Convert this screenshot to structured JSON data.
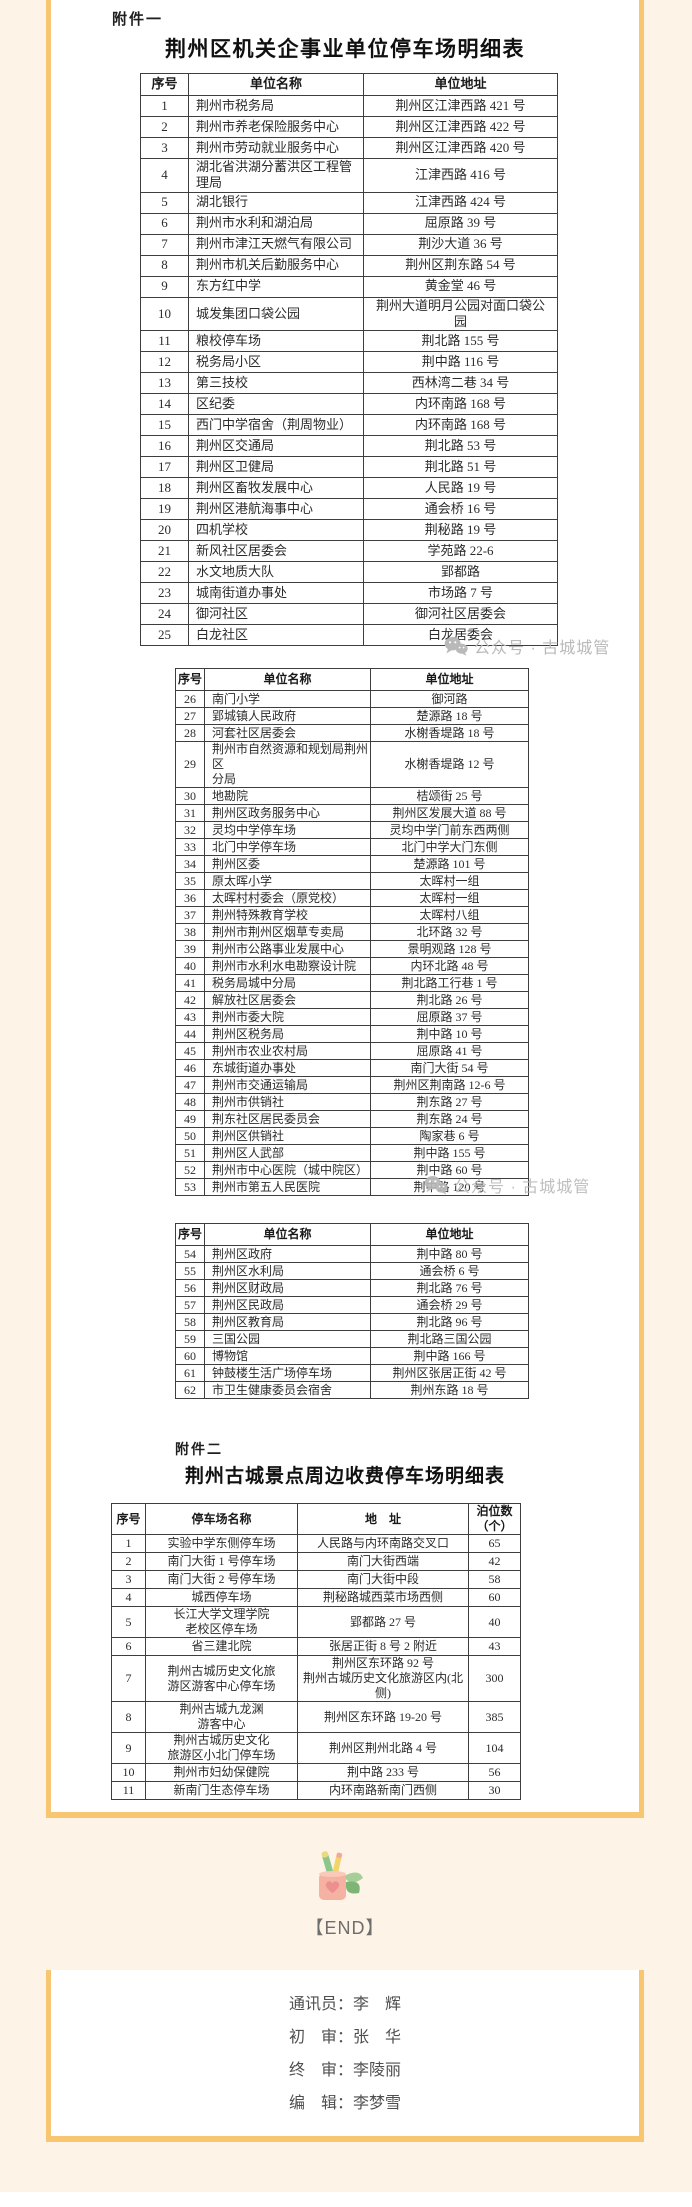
{
  "page": {
    "bg_color": "#fdf3e6",
    "frame_color": "#f8c670",
    "watermark": {
      "icon": "wechat-icon",
      "text": "公众号 · 古城城管",
      "color": "#b9b9b9"
    }
  },
  "attachment1": {
    "label": "附件一",
    "title": "荆州区机关企事业单位停车场明细表"
  },
  "attachment2": {
    "label": "附件二",
    "title": "荆州古城景点周边收费停车场明细表"
  },
  "tables": {
    "t1": {
      "columns": [
        "序号",
        "单位名称",
        "单位地址"
      ],
      "rows": [
        [
          "1",
          "荆州市税务局",
          "荆州区江津西路 421 号"
        ],
        [
          "2",
          "荆州市养老保险服务中心",
          "荆州区江津西路 422 号"
        ],
        [
          "3",
          "荆州市劳动就业服务中心",
          "荆州区江津西路 420 号"
        ],
        [
          "4",
          "湖北省洪湖分蓄洪区工程管理局",
          "江津西路 416 号"
        ],
        [
          "5",
          "湖北银行",
          "江津西路 424 号"
        ],
        [
          "6",
          "荆州市水利和湖泊局",
          "屈原路 39 号"
        ],
        [
          "7",
          "荆州市津江天燃气有限公司",
          "荆沙大道 36 号"
        ],
        [
          "8",
          "荆州市机关后勤服务中心",
          "荆州区荆东路 54 号"
        ],
        [
          "9",
          "东方红中学",
          "黄金堂 46 号"
        ],
        [
          "10",
          "城发集团口袋公园",
          "荆州大道明月公园对面口袋公\n园"
        ],
        [
          "11",
          "粮校停车场",
          "荆北路 155 号"
        ],
        [
          "12",
          "税务局小区",
          "荆中路 116 号"
        ],
        [
          "13",
          "第三技校",
          "西林湾二巷 34 号"
        ],
        [
          "14",
          "区纪委",
          "内环南路 168 号"
        ],
        [
          "15",
          "西门中学宿舍（荆周物业）",
          "内环南路 168 号"
        ],
        [
          "16",
          "荆州区交通局",
          "荆北路 53 号"
        ],
        [
          "17",
          "荆州区卫健局",
          "荆北路 51 号"
        ],
        [
          "18",
          "荆州区畜牧发展中心",
          "人民路 19 号"
        ],
        [
          "19",
          "荆州区港航海事中心",
          "通会桥 16 号"
        ],
        [
          "20",
          "四机学校",
          "荆秘路 19 号"
        ],
        [
          "21",
          "新风社区居委会",
          "学苑路 22-6"
        ],
        [
          "22",
          "水文地质大队",
          "郢都路"
        ],
        [
          "23",
          "城南街道办事处",
          "市场路 7 号"
        ],
        [
          "24",
          "御河社区",
          "御河社区居委会"
        ],
        [
          "25",
          "白龙社区",
          "白龙居委会"
        ]
      ]
    },
    "t2": {
      "columns": [
        "序号",
        "单位名称",
        "单位地址"
      ],
      "rows": [
        [
          "26",
          "南门小学",
          "御河路"
        ],
        [
          "27",
          "郢城镇人民政府",
          "楚源路 18 号"
        ],
        [
          "28",
          "河套社区居委会",
          "水榭香堤路 18 号"
        ],
        [
          "29",
          "荆州市自然资源和规划局荆州区\n分局",
          "水榭香堤路 12 号"
        ],
        [
          "30",
          "地勘院",
          "桔颂街 25 号"
        ],
        [
          "31",
          "荆州区政务服务中心",
          "荆州区发展大道 88 号"
        ],
        [
          "32",
          "灵均中学停车场",
          "灵均中学门前东西两侧"
        ],
        [
          "33",
          "北门中学停车场",
          "北门中学大门东侧"
        ],
        [
          "34",
          "荆州区委",
          "楚源路 101 号"
        ],
        [
          "35",
          "原太晖小学",
          "太晖村一组"
        ],
        [
          "36",
          "太晖村村委会（原党校）",
          "太晖村一组"
        ],
        [
          "37",
          "荆州特殊教育学校",
          "太晖村八组"
        ],
        [
          "38",
          "荆州市荆州区烟草专卖局",
          "北环路 32 号"
        ],
        [
          "39",
          "荆州市公路事业发展中心",
          "景明观路 128 号"
        ],
        [
          "40",
          "荆州市水利水电勘察设计院",
          "内环北路 48 号"
        ],
        [
          "41",
          "税务局城中分局",
          "荆北路工行巷 1 号"
        ],
        [
          "42",
          "解放社区居委会",
          "荆北路 26 号"
        ],
        [
          "43",
          "荆州市委大院",
          "屈原路 37 号"
        ],
        [
          "44",
          "荆州区税务局",
          "荆中路 10 号"
        ],
        [
          "45",
          "荆州市农业农村局",
          "屈原路 41 号"
        ],
        [
          "46",
          "东城街道办事处",
          "南门大街 54 号"
        ],
        [
          "47",
          "荆州市交通运输局",
          "荆州区荆南路 12-6 号"
        ],
        [
          "48",
          "荆州市供销社",
          "荆东路 27 号"
        ],
        [
          "49",
          "荆东社区居民委员会",
          "荆东路 24 号"
        ],
        [
          "50",
          "荆州区供销社",
          "陶家巷 6 号"
        ],
        [
          "51",
          "荆州区人武部",
          "荆中路 155 号"
        ],
        [
          "52",
          "荆州市中心医院（城中院区）",
          "荆中路 60 号"
        ],
        [
          "53",
          "荆州市第五人民医院",
          "荆中路 120 号"
        ]
      ]
    },
    "t3": {
      "columns": [
        "序号",
        "单位名称",
        "单位地址"
      ],
      "rows": [
        [
          "54",
          "荆州区政府",
          "荆中路 80 号"
        ],
        [
          "55",
          "荆州区水利局",
          "通会桥 6 号"
        ],
        [
          "56",
          "荆州区财政局",
          "荆北路 76 号"
        ],
        [
          "57",
          "荆州区民政局",
          "通会桥 29 号"
        ],
        [
          "58",
          "荆州区教育局",
          "荆北路 96 号"
        ],
        [
          "59",
          "三国公园",
          "荆北路三国公园"
        ],
        [
          "60",
          "博物馆",
          "荆中路 166 号"
        ],
        [
          "61",
          "钟鼓楼生活广场停车场",
          "荆州区张居正街 42 号"
        ],
        [
          "62",
          "市卫生健康委员会宿舍",
          "荆州东路 18 号"
        ]
      ]
    },
    "t4": {
      "columns": [
        "序号",
        "停车场名称",
        "地　址",
        "泊位数\n（个）"
      ],
      "rows": [
        [
          "1",
          "实验中学东侧停车场",
          "人民路与内环南路交叉口",
          "65"
        ],
        [
          "2",
          "南门大街 1 号停车场",
          "南门大街西端",
          "42"
        ],
        [
          "3",
          "南门大街 2 号停车场",
          "南门大街中段",
          "58"
        ],
        [
          "4",
          "城西停车场",
          "荆秘路城西菜市场西侧",
          "60"
        ],
        [
          "5",
          "长江大学文理学院\n老校区停车场",
          "郢都路 27 号",
          "40"
        ],
        [
          "6",
          "省三建北院",
          "张居正街 8 号 2 附近",
          "43"
        ],
        [
          "7",
          "荆州古城历史文化旅\n游区游客中心停车场",
          "荆州区东环路 92 号\n荆州古城历史文化旅游区内(北侧)",
          "300"
        ],
        [
          "8",
          "荆州古城九龙渊\n游客中心",
          "荆州区东环路 19-20 号",
          "385"
        ],
        [
          "9",
          "荆州古城历史文化\n旅游区小北门停车场",
          "荆州区荆州北路 4 号",
          "104"
        ],
        [
          "10",
          "荆州市妇幼保健院",
          "荆中路 233 号",
          "56"
        ],
        [
          "11",
          "新南门生态停车场",
          "内环南路新南门西侧",
          "30"
        ]
      ]
    }
  },
  "end_marker": {
    "label": "【END】",
    "illustration": "pen-cup-with-heart-and-leaves"
  },
  "footer": {
    "credits": [
      "通讯员：李　辉",
      "初　审：张　华",
      "终　审：李陵丽",
      "编　辑：李梦雪"
    ]
  }
}
